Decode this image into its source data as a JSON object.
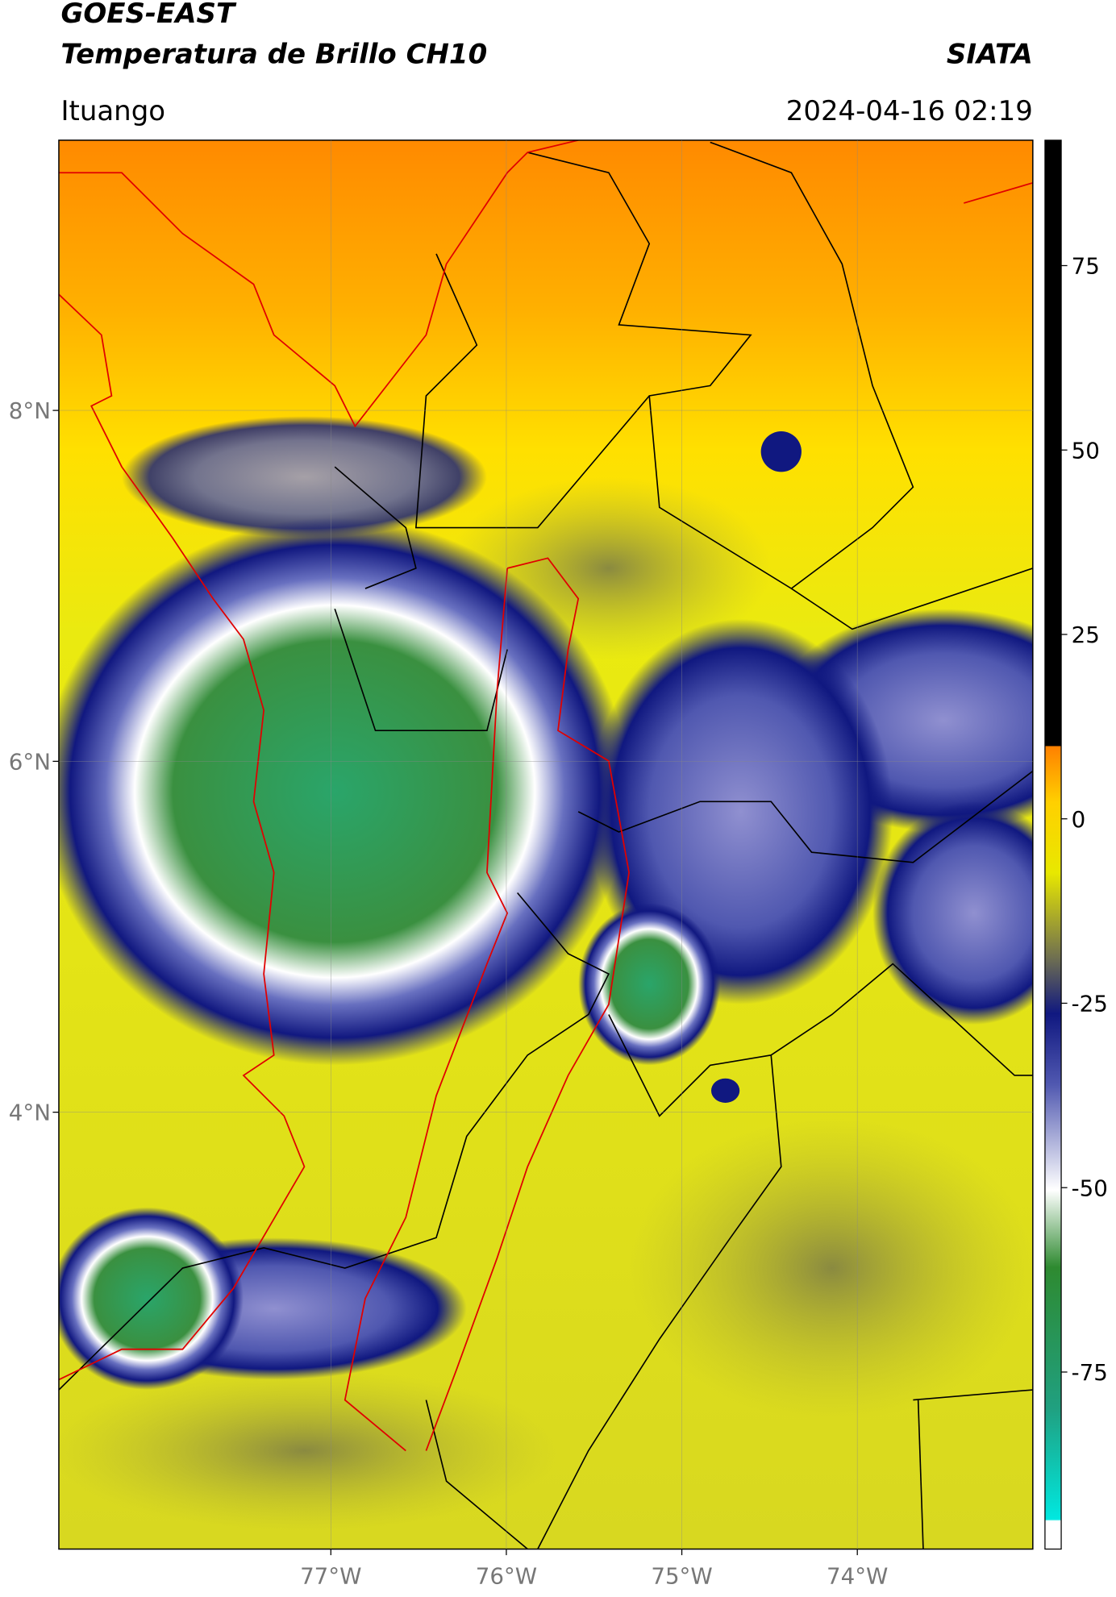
{
  "header": {
    "title": "GOES-EAST",
    "subtitle": "Temperatura de Brillo CH10",
    "source": "SIATA",
    "location": "Ituango",
    "datetime": "2024-04-16 02:19"
  },
  "map": {
    "lon_range": [
      -78.55,
      -73.0
    ],
    "lat_range": [
      1.51,
      9.54
    ],
    "lat_ticks": [
      {
        "value": 8,
        "label": "8°N"
      },
      {
        "value": 6,
        "label": "6°N"
      },
      {
        "value": 4,
        "label": "4°N"
      }
    ],
    "lon_ticks": [
      {
        "value": -77,
        "label": "77°W"
      },
      {
        "value": -76,
        "label": "76°W"
      },
      {
        "value": -75,
        "label": "75°W"
      },
      {
        "value": -74,
        "label": "74°W"
      }
    ]
  },
  "colorbar": {
    "range": [
      -99,
      92
    ],
    "ticks": [
      -75,
      -50,
      -25,
      0,
      25,
      50,
      75
    ]
  }
}
